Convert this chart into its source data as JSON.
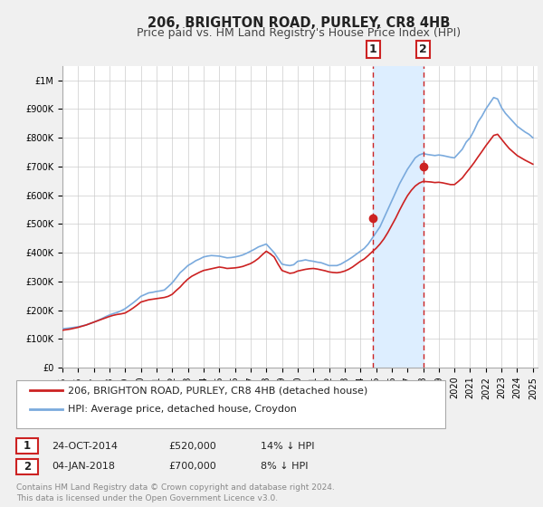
{
  "title": "206, BRIGHTON ROAD, PURLEY, CR8 4HB",
  "subtitle": "Price paid vs. HM Land Registry's House Price Index (HPI)",
  "ylim": [
    0,
    1050000
  ],
  "xlim_start": 1995.0,
  "xlim_end": 2025.3,
  "yticks": [
    0,
    100000,
    200000,
    300000,
    400000,
    500000,
    600000,
    700000,
    800000,
    900000,
    1000000
  ],
  "ytick_labels": [
    "£0",
    "£100K",
    "£200K",
    "£300K",
    "£400K",
    "£500K",
    "£600K",
    "£700K",
    "£800K",
    "£900K",
    "£1M"
  ],
  "xtick_years": [
    1995,
    1996,
    1997,
    1998,
    1999,
    2000,
    2001,
    2002,
    2003,
    2004,
    2005,
    2006,
    2007,
    2008,
    2009,
    2010,
    2011,
    2012,
    2013,
    2014,
    2015,
    2016,
    2017,
    2018,
    2019,
    2020,
    2021,
    2022,
    2023,
    2024,
    2025
  ],
  "hpi_color": "#7aaadd",
  "price_color": "#cc2222",
  "shade_color": "#ddeeff",
  "vline1_x": 2014.82,
  "vline2_x": 2018.02,
  "marker1_x": 2014.82,
  "marker1_y": 520000,
  "marker2_x": 2018.02,
  "marker2_y": 700000,
  "legend_label_red": "206, BRIGHTON ROAD, PURLEY, CR8 4HB (detached house)",
  "legend_label_blue": "HPI: Average price, detached house, Croydon",
  "table_row1": [
    "1",
    "24-OCT-2014",
    "£520,000",
    "14% ↓ HPI"
  ],
  "table_row2": [
    "2",
    "04-JAN-2018",
    "£700,000",
    "8% ↓ HPI"
  ],
  "footer": "Contains HM Land Registry data © Crown copyright and database right 2024.\nThis data is licensed under the Open Government Licence v3.0.",
  "bg_color": "#f0f0f0",
  "plot_bg_color": "#ffffff",
  "grid_color": "#cccccc",
  "title_fontsize": 10.5,
  "subtitle_fontsize": 9,
  "tick_fontsize": 7,
  "legend_fontsize": 8,
  "table_fontsize": 8,
  "footer_fontsize": 6.5,
  "hpi_years": [
    1995.0,
    1995.25,
    1995.5,
    1995.75,
    1996.0,
    1996.25,
    1996.5,
    1996.75,
    1997.0,
    1997.25,
    1997.5,
    1997.75,
    1998.0,
    1998.25,
    1998.5,
    1998.75,
    1999.0,
    1999.25,
    1999.5,
    1999.75,
    2000.0,
    2000.25,
    2000.5,
    2000.75,
    2001.0,
    2001.25,
    2001.5,
    2001.75,
    2002.0,
    2002.25,
    2002.5,
    2002.75,
    2003.0,
    2003.25,
    2003.5,
    2003.75,
    2004.0,
    2004.25,
    2004.5,
    2004.75,
    2005.0,
    2005.25,
    2005.5,
    2005.75,
    2006.0,
    2006.25,
    2006.5,
    2006.75,
    2007.0,
    2007.25,
    2007.5,
    2007.75,
    2008.0,
    2008.25,
    2008.5,
    2008.75,
    2009.0,
    2009.25,
    2009.5,
    2009.75,
    2010.0,
    2010.25,
    2010.5,
    2010.75,
    2011.0,
    2011.25,
    2011.5,
    2011.75,
    2012.0,
    2012.25,
    2012.5,
    2012.75,
    2013.0,
    2013.25,
    2013.5,
    2013.75,
    2014.0,
    2014.25,
    2014.5,
    2014.75,
    2015.0,
    2015.25,
    2015.5,
    2015.75,
    2016.0,
    2016.25,
    2016.5,
    2016.75,
    2017.0,
    2017.25,
    2017.5,
    2017.75,
    2018.0,
    2018.25,
    2018.5,
    2018.75,
    2019.0,
    2019.25,
    2019.5,
    2019.75,
    2020.0,
    2020.25,
    2020.5,
    2020.75,
    2021.0,
    2021.25,
    2021.5,
    2021.75,
    2022.0,
    2022.25,
    2022.5,
    2022.75,
    2023.0,
    2023.25,
    2023.5,
    2023.75,
    2024.0,
    2024.25,
    2024.5,
    2024.75,
    2025.0
  ],
  "hpi_values": [
    135000,
    136500,
    138000,
    140000,
    142000,
    145000,
    148000,
    153000,
    158000,
    164000,
    170000,
    177000,
    183000,
    188000,
    192000,
    198000,
    205000,
    215000,
    225000,
    236000,
    248000,
    254000,
    260000,
    262000,
    265000,
    267000,
    270000,
    282000,
    295000,
    312000,
    330000,
    342000,
    355000,
    363000,
    372000,
    378000,
    385000,
    388000,
    390000,
    389000,
    388000,
    385000,
    382000,
    383000,
    385000,
    388000,
    392000,
    398000,
    405000,
    412000,
    420000,
    425000,
    430000,
    415000,
    400000,
    380000,
    360000,
    357000,
    355000,
    358000,
    370000,
    372000,
    375000,
    372000,
    370000,
    367000,
    365000,
    360000,
    355000,
    355000,
    355000,
    360000,
    368000,
    376000,
    385000,
    395000,
    405000,
    415000,
    430000,
    450000,
    470000,
    490000,
    520000,
    550000,
    580000,
    610000,
    640000,
    665000,
    690000,
    710000,
    730000,
    740000,
    745000,
    742000,
    740000,
    738000,
    740000,
    738000,
    735000,
    732000,
    730000,
    745000,
    760000,
    785000,
    800000,
    825000,
    855000,
    875000,
    900000,
    920000,
    940000,
    935000,
    905000,
    885000,
    870000,
    855000,
    840000,
    830000,
    820000,
    812000,
    800000
  ],
  "price_years": [
    1995.0,
    1995.25,
    1995.5,
    1995.75,
    1996.0,
    1996.25,
    1996.5,
    1996.75,
    1997.0,
    1997.25,
    1997.5,
    1997.75,
    1998.0,
    1998.25,
    1998.5,
    1998.75,
    1999.0,
    1999.25,
    1999.5,
    1999.75,
    2000.0,
    2000.25,
    2000.5,
    2000.75,
    2001.0,
    2001.25,
    2001.5,
    2001.75,
    2002.0,
    2002.25,
    2002.5,
    2002.75,
    2003.0,
    2003.25,
    2003.5,
    2003.75,
    2004.0,
    2004.25,
    2004.5,
    2004.75,
    2005.0,
    2005.25,
    2005.5,
    2005.75,
    2006.0,
    2006.25,
    2006.5,
    2006.75,
    2007.0,
    2007.25,
    2007.5,
    2007.75,
    2008.0,
    2008.25,
    2008.5,
    2008.75,
    2009.0,
    2009.25,
    2009.5,
    2009.75,
    2010.0,
    2010.25,
    2010.5,
    2010.75,
    2011.0,
    2011.25,
    2011.5,
    2011.75,
    2012.0,
    2012.25,
    2012.5,
    2012.75,
    2013.0,
    2013.25,
    2013.5,
    2013.75,
    2014.0,
    2014.25,
    2014.5,
    2014.75,
    2015.0,
    2015.25,
    2015.5,
    2015.75,
    2016.0,
    2016.25,
    2016.5,
    2016.75,
    2017.0,
    2017.25,
    2017.5,
    2017.75,
    2018.0,
    2018.25,
    2018.5,
    2018.75,
    2019.0,
    2019.25,
    2019.5,
    2019.75,
    2020.0,
    2020.25,
    2020.5,
    2020.75,
    2021.0,
    2021.25,
    2021.5,
    2021.75,
    2022.0,
    2022.25,
    2022.5,
    2022.75,
    2023.0,
    2023.25,
    2023.5,
    2023.75,
    2024.0,
    2024.25,
    2024.5,
    2024.75,
    2025.0
  ],
  "price_values": [
    130000,
    132000,
    134000,
    137000,
    140000,
    144000,
    148000,
    153000,
    158000,
    163000,
    168000,
    173000,
    178000,
    182000,
    185000,
    187000,
    190000,
    198000,
    207000,
    217000,
    228000,
    232000,
    236000,
    238000,
    240000,
    242000,
    244000,
    248000,
    255000,
    268000,
    280000,
    295000,
    308000,
    318000,
    325000,
    332000,
    338000,
    341000,
    344000,
    347000,
    350000,
    348000,
    345000,
    346000,
    347000,
    349000,
    352000,
    357000,
    362000,
    370000,
    380000,
    393000,
    405000,
    396000,
    385000,
    360000,
    338000,
    333000,
    328000,
    330000,
    336000,
    339000,
    342000,
    344000,
    345000,
    343000,
    340000,
    337000,
    333000,
    331000,
    330000,
    332000,
    336000,
    342000,
    350000,
    360000,
    370000,
    378000,
    390000,
    403000,
    415000,
    430000,
    448000,
    470000,
    495000,
    520000,
    548000,
    574000,
    598000,
    617000,
    632000,
    642000,
    648000,
    647000,
    646000,
    644000,
    645000,
    643000,
    640000,
    637000,
    637000,
    648000,
    660000,
    678000,
    695000,
    713000,
    733000,
    752000,
    772000,
    790000,
    808000,
    812000,
    795000,
    778000,
    762000,
    750000,
    738000,
    730000,
    722000,
    715000,
    708000
  ]
}
